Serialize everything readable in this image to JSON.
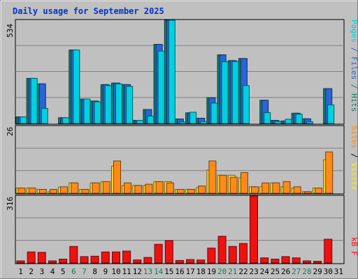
{
  "chart_data": [
    {
      "type": "bar",
      "title": "Daily usage for September 2025",
      "ylabel_max": "534",
      "legend": [
        "Pages",
        "Files",
        "Hits"
      ],
      "legend_colors": [
        "#00d0e0",
        "#2a64d6",
        "#11806a"
      ],
      "categories": [
        "1",
        "2",
        "3",
        "4",
        "5",
        "6",
        "7",
        "8",
        "9",
        "10",
        "11",
        "12",
        "13",
        "14",
        "15",
        "16",
        "17",
        "18",
        "19",
        "20",
        "21",
        "22",
        "23",
        "24",
        "25",
        "26",
        "27",
        "28",
        "29",
        "30",
        "31"
      ],
      "weekend_days": [
        "6",
        "7",
        "13",
        "14",
        "20",
        "21",
        "27",
        "28"
      ],
      "ylim": [
        0,
        534
      ],
      "series": [
        {
          "name": "Hits",
          "color": "#11806a",
          "values": [
            34,
            233,
            205,
            0,
            30,
            380,
            126,
            116,
            201,
            209,
            201,
            16,
            72,
            409,
            534,
            23,
            55,
            27,
            133,
            355,
            325,
            336,
            0,
            120,
            16,
            13,
            53,
            24,
            0,
            180,
            0
          ]
        },
        {
          "name": "Files",
          "color": "#2a64d6",
          "values": [
            34,
            233,
            205,
            0,
            30,
            380,
            126,
            116,
            201,
            209,
            201,
            16,
            72,
            409,
            534,
            23,
            55,
            27,
            133,
            355,
            325,
            336,
            0,
            120,
            16,
            13,
            53,
            24,
            0,
            180,
            0
          ]
        },
        {
          "name": "Pages",
          "color": "#00d0e0",
          "values": [
            34,
            233,
            78,
            0,
            30,
            380,
            126,
            112,
            196,
            205,
            192,
            16,
            38,
            374,
            534,
            8,
            58,
            10,
            105,
            319,
            320,
            196,
            0,
            56,
            10,
            22,
            48,
            9,
            0,
            96,
            0
          ]
        }
      ]
    },
    {
      "type": "bar",
      "ylabel_max": "26",
      "legend": [
        "Sites",
        "/",
        "Visits"
      ],
      "legend_colors": [
        "#ff8a00",
        "#000000",
        "#ffee00"
      ],
      "categories": [
        "1",
        "2",
        "3",
        "4",
        "5",
        "6",
        "7",
        "8",
        "9",
        "10",
        "11",
        "12",
        "13",
        "14",
        "15",
        "16",
        "17",
        "18",
        "19",
        "20",
        "21",
        "22",
        "23",
        "24",
        "25",
        "26",
        "27",
        "28",
        "29",
        "30",
        "31"
      ],
      "ylim": [
        0,
        26
      ],
      "series": [
        {
          "name": "Visits",
          "color": "#ffd820",
          "values": [
            2,
            2,
            1.5,
            0.6,
            2.4,
            4,
            1.5,
            4,
            4.5,
            10.5,
            3,
            3,
            3,
            4.5,
            4.5,
            1.5,
            1.5,
            2.2,
            9,
            7,
            7,
            6,
            2.5,
            2.5,
            4,
            2.5,
            2,
            0.6,
            2,
            13,
            0
          ]
        },
        {
          "name": "Sites",
          "color": "#ff8a1a",
          "values": [
            2,
            2,
            1.5,
            1.5,
            2.5,
            4,
            1.5,
            4,
            4.5,
            12.5,
            4,
            3,
            3.5,
            4.5,
            4,
            1.5,
            1.5,
            2.8,
            12.5,
            7,
            6.2,
            8,
            2.5,
            4,
            4,
            4.5,
            2.5,
            0.6,
            2,
            16,
            0
          ]
        }
      ]
    },
    {
      "type": "bar",
      "ylabel_max": "316",
      "legend": [
        "kB F"
      ],
      "legend_colors": [
        "#ee1111"
      ],
      "categories": [
        "1",
        "2",
        "3",
        "4",
        "5",
        "6",
        "7",
        "8",
        "9",
        "10",
        "11",
        "12",
        "13",
        "14",
        "15",
        "16",
        "17",
        "18",
        "19",
        "20",
        "21",
        "22",
        "23",
        "24",
        "25",
        "26",
        "27",
        "28",
        "29",
        "30",
        "31"
      ],
      "ylim": [
        0,
        316
      ],
      "series": [
        {
          "name": "kB F",
          "color": "#ee1111",
          "values": [
            10,
            52,
            50,
            10,
            18,
            78,
            30,
            32,
            52,
            52,
            56,
            14,
            26,
            88,
            106,
            12,
            16,
            14,
            70,
            126,
            78,
            92,
            316,
            24,
            18,
            30,
            24,
            10,
            8,
            112,
            0
          ]
        }
      ]
    }
  ]
}
